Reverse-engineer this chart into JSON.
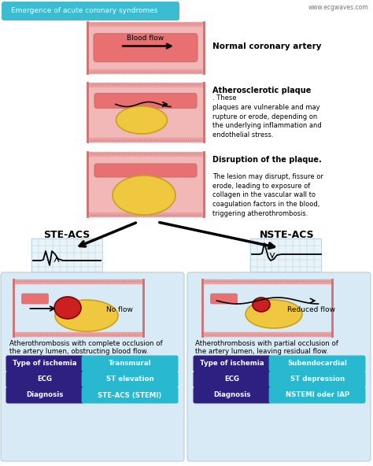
{
  "title": "Emergence of acute coronary syndromes",
  "website": "www.ecgwaves.com",
  "bg_color": "#ffffff",
  "header_bg": "#3bbcd0",
  "header_text_color": "#ffffff",
  "artery_outer_color": "#f2b8b8",
  "artery_inner_color": "#e87070",
  "artery_wall_color": "#f5c8c8",
  "artery_border_color": "#cc7070",
  "artery_top_color": "#e8a0a0",
  "plaque_color": "#f0c840",
  "plaque_edge_color": "#c8a020",
  "thrombus_color": "#cc2020",
  "thrombus_edge_color": "#800000",
  "arrow_color": "#000000",
  "section1_label": "Normal coronary artery",
  "section2_label_bold": "Atherosclerotic plaque",
  "section2_label_rest": ". These\nplaques are vulnerable and may\nrupture or erode, depending on\nthe underlying inflammation and\nendothelial stress.",
  "section3_label_bold": "Disruption of the plaque.",
  "section3_label_rest": "\nThe lesion may disrupt, fissure or\nerode, leading to exposure of\ncollagen in the vascular wall to\ncoagulation factors in the blood,\ntriggering atherothrombosis.",
  "ste_label": "STE-ACS",
  "nste_label": "NSTE-ACS",
  "box_bg": "#d8eaf5",
  "box_border": "#b8ccd8",
  "left_desc_line1": "Atherothrombosis with complete occlusion of",
  "left_desc_line2": "the artery lumen, obstructing blood flow.",
  "right_desc_line1": "Atherothrombosis with partial occlusion of",
  "right_desc_line2": "the artery lumen, leaving residual flow.",
  "no_flow": "No flow",
  "reduced_flow": "Reduced flow",
  "purple_color": "#2d2080",
  "cyan_color": "#28b8d0",
  "left_rows": [
    [
      "Type of ischemia",
      "Transmural"
    ],
    [
      "ECG",
      "ST elevation"
    ],
    [
      "Diagnosis",
      "STE-ACS (STEMI)"
    ]
  ],
  "right_rows": [
    [
      "Type of ischemia",
      "Subendocardial"
    ],
    [
      "ECG",
      "ST depression"
    ],
    [
      "Diagnosis",
      "NSTEMI oder IAP"
    ]
  ]
}
